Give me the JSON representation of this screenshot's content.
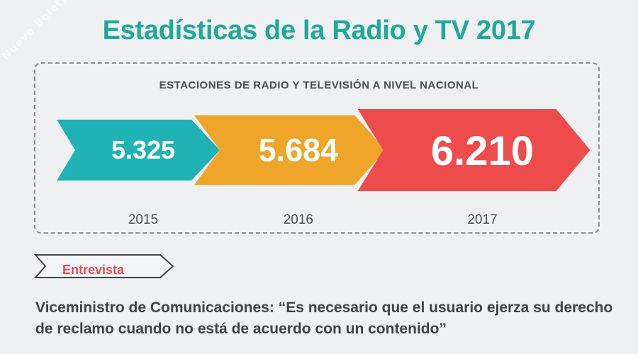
{
  "watermark": "Nuevo Boletín",
  "title": "Estadísticas de la Radio y TV 2017",
  "chart_data": {
    "type": "bar",
    "title": "ESTACIONES DE RADIO Y TELEVISIÓN A NIVEL NACIONAL",
    "categories": [
      "2015",
      "2016",
      "2017"
    ],
    "values": [
      5325,
      5684,
      6210
    ],
    "value_labels": [
      "5.325",
      "5.684",
      "6.210"
    ],
    "colors": [
      "#1fb3b6",
      "#eea52a",
      "#ee4b4d"
    ]
  },
  "tag": {
    "label": "Entrevista"
  },
  "headline": "Viceministro de Comunicaciones: “Es necesario que el usuario ejerza su derecho de reclamo cuando no está de acuerdo con un contenido”"
}
